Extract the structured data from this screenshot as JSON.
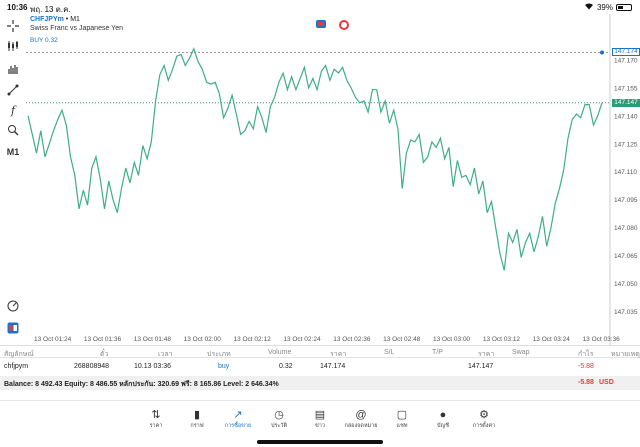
{
  "status_bar": {
    "time": "10:36",
    "date": "พฤ. 13 ต.ค.",
    "battery": "39%",
    "battery_level": 0.39
  },
  "chart": {
    "symbol": "CHFJPYm",
    "timeframe": "M1",
    "description": "Swiss Franc vs Japanese Yen",
    "buy_label": "BUY 0.32",
    "period_button": "M1",
    "colors": {
      "line": "#3dae85",
      "bid": "#2a9d77",
      "order": "#1a73c9",
      "sell": "#e23c3c"
    },
    "price_tags": {
      "order": "147.174",
      "current": "147.147"
    }
  },
  "chart_data": {
    "type": "line",
    "y_ticks": [
      "147.170",
      "147.155",
      "147.140",
      "147.125",
      "147.110",
      "147.095",
      "147.080",
      "147.065",
      "147.050",
      "147.035"
    ],
    "ylim": [
      147.025,
      147.185
    ],
    "x_ticks": [
      "13 Oct 01:24",
      "13 Oct 01:36",
      "13 Oct 01:48",
      "13 Oct 02:00",
      "13 Oct 02:12",
      "13 Oct 02:24",
      "13 Oct 02:36",
      "13 Oct 02:48",
      "13 Oct 03:00",
      "13 Oct 03:12",
      "13 Oct 03:24",
      "13 Oct 03:36"
    ],
    "series": [
      {
        "values": [
          147.14,
          147.13,
          147.12,
          147.132,
          147.118,
          147.125,
          147.132,
          147.138,
          147.143,
          147.135,
          147.118,
          147.108,
          147.09,
          147.1,
          147.092,
          147.112,
          147.118,
          147.106,
          147.09,
          147.105,
          147.095,
          147.088,
          147.101,
          147.112,
          147.104,
          147.115,
          147.108,
          147.124,
          147.117,
          147.126,
          147.148,
          147.162,
          147.167,
          147.159,
          147.165,
          147.172,
          147.173,
          147.167,
          147.171,
          147.176,
          147.169,
          147.165,
          147.158,
          147.157,
          147.158,
          147.152,
          147.139,
          147.144,
          147.151,
          147.141,
          147.13,
          147.132,
          147.137,
          147.133,
          147.145,
          147.139,
          147.131,
          147.145,
          147.15,
          147.158,
          147.163,
          147.154,
          147.161,
          147.154,
          147.16,
          147.166,
          147.155,
          147.16,
          147.154,
          147.164,
          147.167,
          147.159,
          147.165,
          147.163,
          147.166,
          147.159,
          147.155,
          147.15,
          147.147,
          147.148,
          147.142,
          147.154,
          147.154,
          147.142,
          147.148,
          147.136,
          147.143,
          147.133,
          147.101,
          147.12,
          147.127,
          147.126,
          147.13,
          147.115,
          147.118,
          147.126,
          147.123,
          147.128,
          147.117,
          147.123,
          147.102,
          147.116,
          147.107,
          147.108,
          147.103,
          147.112,
          147.098,
          147.105,
          147.088,
          147.094,
          147.08,
          147.066,
          147.057,
          147.077,
          147.072,
          147.079,
          147.064,
          147.072,
          147.077,
          147.067,
          147.075,
          147.086,
          147.07,
          147.08,
          147.093,
          147.101,
          147.111,
          147.128,
          147.138,
          147.141,
          147.139,
          147.146,
          147.146,
          147.135,
          147.14,
          147.147
        ]
      }
    ]
  },
  "table": {
    "headers": [
      "สัญลักษณ์",
      "ตั๋ว",
      "เวลา",
      "ประเภท",
      "Volume",
      "ราคา",
      "S/L",
      "T/P",
      "ราคา",
      "Swap",
      "กำไร",
      "หมายเหตุ"
    ],
    "row": {
      "symbol": "chfjpym",
      "ticket": "268808948",
      "time": "10.13 03:36",
      "type": "buy",
      "volume": "0.32",
      "open_price": "147.174",
      "current_price": "147.147",
      "profit": "-5.88"
    }
  },
  "balance": {
    "text": "Balance: 8 492.43 Equity: 8 486.55 หลักประกัน: 320.69 ฟรี: 8 165.86 Level: 2 646.34%",
    "profit": "-5.88",
    "currency": "USD"
  },
  "nav": [
    {
      "label": "ราคา",
      "icon": "arrows-icon"
    },
    {
      "label": "กราฟ",
      "icon": "candles-icon"
    },
    {
      "label": "การซื้อขาย",
      "icon": "trade-icon"
    },
    {
      "label": "ประวัติ",
      "icon": "history-icon"
    },
    {
      "label": "ข่าว",
      "icon": "news-icon"
    },
    {
      "label": "กล่องจดหมาย",
      "icon": "mail-icon"
    },
    {
      "label": "แชท",
      "icon": "chat-icon"
    },
    {
      "label": "บัญชี",
      "icon": "account-icon"
    },
    {
      "label": "การตั้งค่า",
      "icon": "settings-icon"
    }
  ]
}
